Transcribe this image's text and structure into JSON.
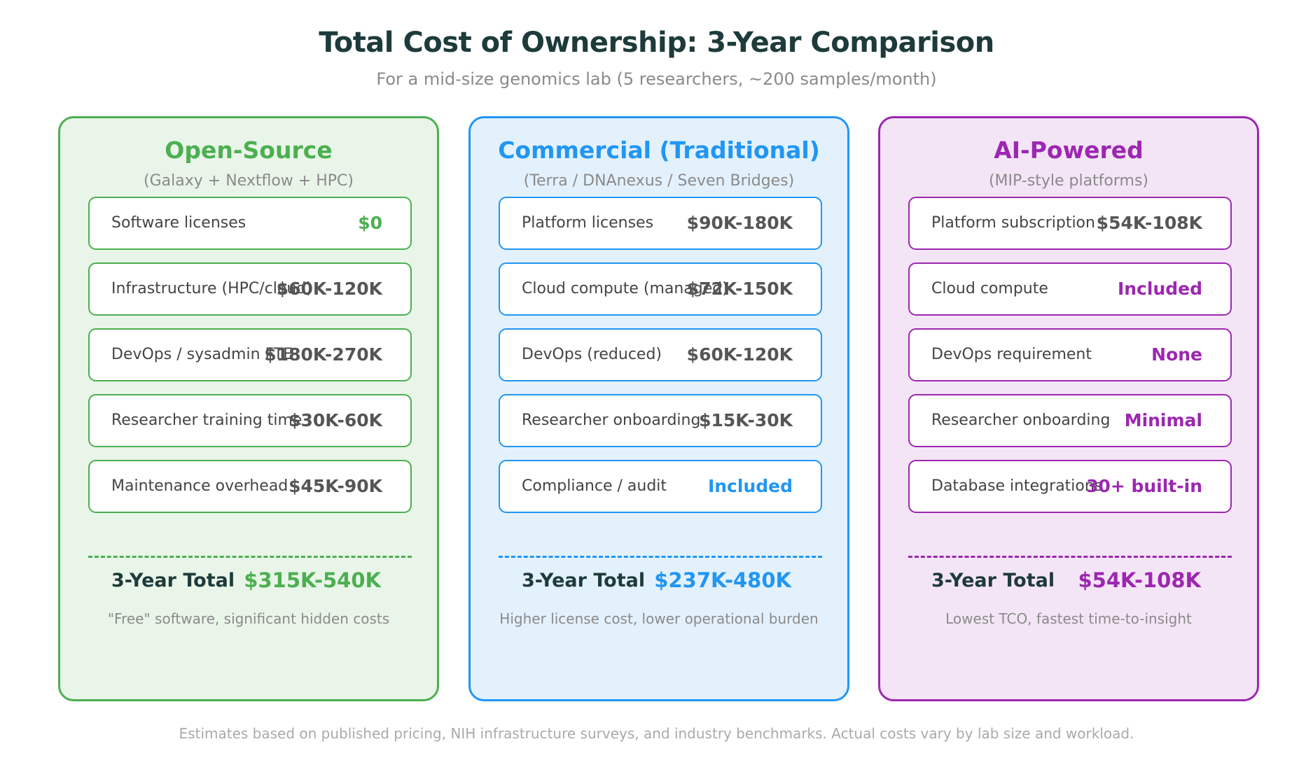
{
  "title": "Total Cost of Ownership: 3-Year Comparison",
  "subtitle": "For a mid-size genomics lab (5 researchers, ~200 samples/month)",
  "colors": {
    "open_source": "#4caf50",
    "commercial": "#2196f3",
    "ai_powered": "#9c27b0",
    "title": "#1d3b3a"
  },
  "panels": [
    {
      "title": "Open-Source",
      "subtitle": "(Galaxy + Nextflow + HPC)",
      "rows": [
        {
          "label": "Software licenses",
          "value": "$0"
        },
        {
          "label": "Infrastructure (HPC/cloud)",
          "value": "$60K-120K"
        },
        {
          "label": "DevOps / sysadmin FTE",
          "value": "$180K-270K"
        },
        {
          "label": "Researcher training time",
          "value": "$30K-60K"
        },
        {
          "label": "Maintenance overhead",
          "value": "$45K-90K"
        }
      ],
      "total_label": "3-Year Total",
      "total_value": "$315K-540K",
      "note": "\"Free\" software, significant hidden costs"
    },
    {
      "title": "Commercial (Traditional)",
      "subtitle": "(Terra / DNAnexus / Seven Bridges)",
      "rows": [
        {
          "label": "Platform licenses",
          "value": "$90K-180K"
        },
        {
          "label": "Cloud compute (managed)",
          "value": "$72K-150K"
        },
        {
          "label": "DevOps (reduced)",
          "value": "$60K-120K"
        },
        {
          "label": "Researcher onboarding",
          "value": "$15K-30K"
        },
        {
          "label": "Compliance / audit",
          "value": "Included"
        }
      ],
      "total_label": "3-Year Total",
      "total_value": "$237K-480K",
      "note": "Higher license cost, lower operational burden"
    },
    {
      "title": "AI-Powered",
      "subtitle": "(MIP-style platforms)",
      "rows": [
        {
          "label": "Platform subscription",
          "value": "$54K-108K"
        },
        {
          "label": "Cloud compute",
          "value": "Included"
        },
        {
          "label": "DevOps requirement",
          "value": "None"
        },
        {
          "label": "Researcher onboarding",
          "value": "Minimal"
        },
        {
          "label": "Database integrations",
          "value": "30+ built-in"
        }
      ],
      "total_label": "3-Year Total",
      "total_value": "$54K-108K",
      "note": "Lowest TCO, fastest time-to-insight"
    }
  ],
  "footer": "Estimates based on published pricing, NIH infrastructure surveys, and industry benchmarks. Actual costs vary by lab size and workload."
}
